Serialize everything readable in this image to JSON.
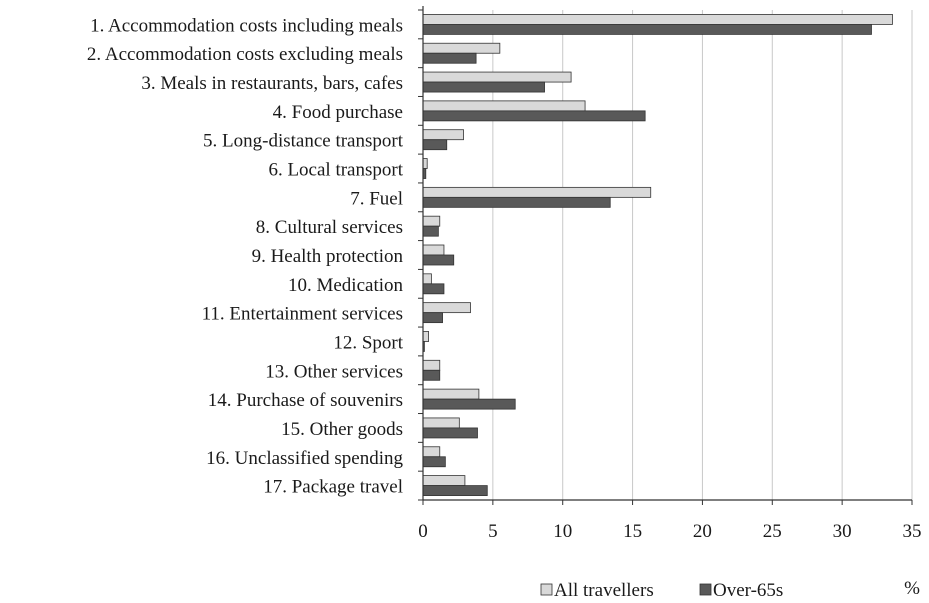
{
  "chart_data": {
    "type": "bar",
    "orientation": "horizontal",
    "categories": [
      "1. Accommodation costs including meals",
      "2. Accommodation costs excluding meals",
      "3. Meals in restaurants, bars, cafes",
      "4. Food purchase",
      "5. Long-distance transport",
      "6. Local transport",
      "7. Fuel",
      "8. Cultural services",
      "9. Health protection",
      "10. Medication",
      "11. Entertainment services",
      "12. Sport",
      "13. Other services",
      "14. Purchase of souvenirs",
      "15. Other goods",
      "16. Unclassified spending",
      "17. Package travel"
    ],
    "series": [
      {
        "name": "All travellers",
        "color": "#d9d9d9",
        "values": [
          33.6,
          5.5,
          10.6,
          11.6,
          2.9,
          0.3,
          16.3,
          1.2,
          1.5,
          0.6,
          3.4,
          0.4,
          1.2,
          4.0,
          2.6,
          1.2,
          3.0
        ]
      },
      {
        "name": "Over-65s",
        "color": "#595959",
        "values": [
          32.1,
          3.8,
          8.7,
          15.9,
          1.7,
          0.2,
          13.4,
          1.1,
          2.2,
          1.5,
          1.4,
          0.1,
          1.2,
          6.6,
          3.9,
          1.6,
          4.6
        ]
      }
    ],
    "xlim": [
      0,
      35
    ],
    "xticks": [
      "0",
      "5",
      "10",
      "15",
      "20",
      "25",
      "30",
      "35"
    ],
    "xlabel": "%",
    "grid": "vertical",
    "legend_position": "bottom-right"
  }
}
